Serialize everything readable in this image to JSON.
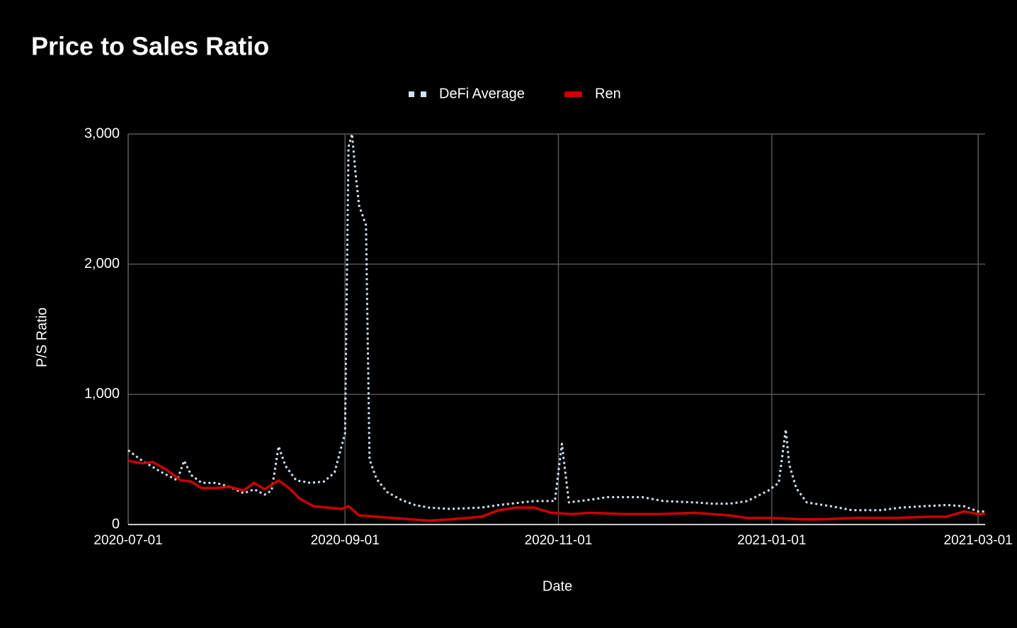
{
  "chart_data": {
    "type": "line",
    "title": "Price to Sales Ratio",
    "x_label": "Date",
    "y_label": "P/S Ratio",
    "xlim": [
      "2020-07-01",
      "2021-03-03"
    ],
    "xticks": [
      "2020-07-01",
      "2020-09-01",
      "2020-11-01",
      "2021-01-01",
      "2021-03-01"
    ],
    "ylim": [
      0,
      3000
    ],
    "yticks": [
      0,
      {
        "value": 1000,
        "label": "1,000"
      },
      {
        "value": 2000,
        "label": "2,000"
      },
      {
        "value": 3000,
        "label": "3,000"
      }
    ],
    "grid": true,
    "legend": "top",
    "series": [
      {
        "name": "DeFi Average",
        "color": "#cfe2f3",
        "style": "dotted",
        "x": [
          "2020-07-01",
          "2020-07-05",
          "2020-07-10",
          "2020-07-15",
          "2020-07-17",
          "2020-07-19",
          "2020-07-22",
          "2020-07-26",
          "2020-07-30",
          "2020-08-03",
          "2020-08-06",
          "2020-08-09",
          "2020-08-11",
          "2020-08-13",
          "2020-08-15",
          "2020-08-18",
          "2020-08-22",
          "2020-08-26",
          "2020-08-29",
          "2020-09-01",
          "2020-09-02",
          "2020-09-03",
          "2020-09-04",
          "2020-09-05",
          "2020-09-07",
          "2020-09-08",
          "2020-09-10",
          "2020-09-13",
          "2020-09-17",
          "2020-09-21",
          "2020-09-25",
          "2020-10-01",
          "2020-10-10",
          "2020-10-15",
          "2020-10-25",
          "2020-10-31",
          "2020-11-02",
          "2020-11-04",
          "2020-11-10",
          "2020-11-15",
          "2020-11-25",
          "2020-12-01",
          "2020-12-10",
          "2020-12-15",
          "2020-12-20",
          "2020-12-25",
          "2020-12-31",
          "2021-01-03",
          "2021-01-05",
          "2021-01-06",
          "2021-01-08",
          "2021-01-11",
          "2021-01-18",
          "2021-01-24",
          "2021-02-01",
          "2021-02-07",
          "2021-02-13",
          "2021-02-20",
          "2021-02-25",
          "2021-03-01",
          "2021-03-03"
        ],
        "values": [
          570,
          490,
          410,
          340,
          490,
          380,
          320,
          320,
          290,
          240,
          270,
          230,
          260,
          600,
          450,
          340,
          320,
          330,
          400,
          700,
          2900,
          3000,
          2700,
          2450,
          2300,
          500,
          350,
          250,
          190,
          150,
          130,
          120,
          130,
          150,
          180,
          180,
          620,
          170,
          190,
          210,
          210,
          180,
          170,
          160,
          160,
          180,
          260,
          320,
          730,
          460,
          280,
          170,
          140,
          110,
          110,
          130,
          140,
          150,
          140,
          100,
          100
        ]
      },
      {
        "name": "Ren",
        "color": "#cc0000",
        "style": "solid",
        "x": [
          "2020-07-01",
          "2020-07-05",
          "2020-07-08",
          "2020-07-12",
          "2020-07-16",
          "2020-07-19",
          "2020-07-22",
          "2020-07-26",
          "2020-07-30",
          "2020-08-03",
          "2020-08-06",
          "2020-08-09",
          "2020-08-13",
          "2020-08-16",
          "2020-08-19",
          "2020-08-23",
          "2020-08-27",
          "2020-08-31",
          "2020-09-02",
          "2020-09-05",
          "2020-09-10",
          "2020-09-20",
          "2020-09-25",
          "2020-10-01",
          "2020-10-10",
          "2020-10-15",
          "2020-10-20",
          "2020-10-25",
          "2020-10-30",
          "2020-11-05",
          "2020-11-10",
          "2020-11-20",
          "2020-11-30",
          "2020-12-10",
          "2020-12-20",
          "2020-12-25",
          "2021-01-01",
          "2021-01-10",
          "2021-01-15",
          "2021-01-25",
          "2021-02-05",
          "2021-02-15",
          "2021-02-20",
          "2021-02-25",
          "2021-03-01",
          "2021-03-03"
        ],
        "values": [
          490,
          470,
          480,
          420,
          340,
          330,
          280,
          280,
          290,
          260,
          320,
          270,
          340,
          280,
          200,
          140,
          130,
          120,
          140,
          70,
          60,
          40,
          30,
          40,
          60,
          110,
          130,
          130,
          90,
          80,
          90,
          80,
          80,
          90,
          70,
          50,
          50,
          40,
          40,
          50,
          50,
          60,
          60,
          100,
          80,
          80
        ]
      }
    ]
  }
}
